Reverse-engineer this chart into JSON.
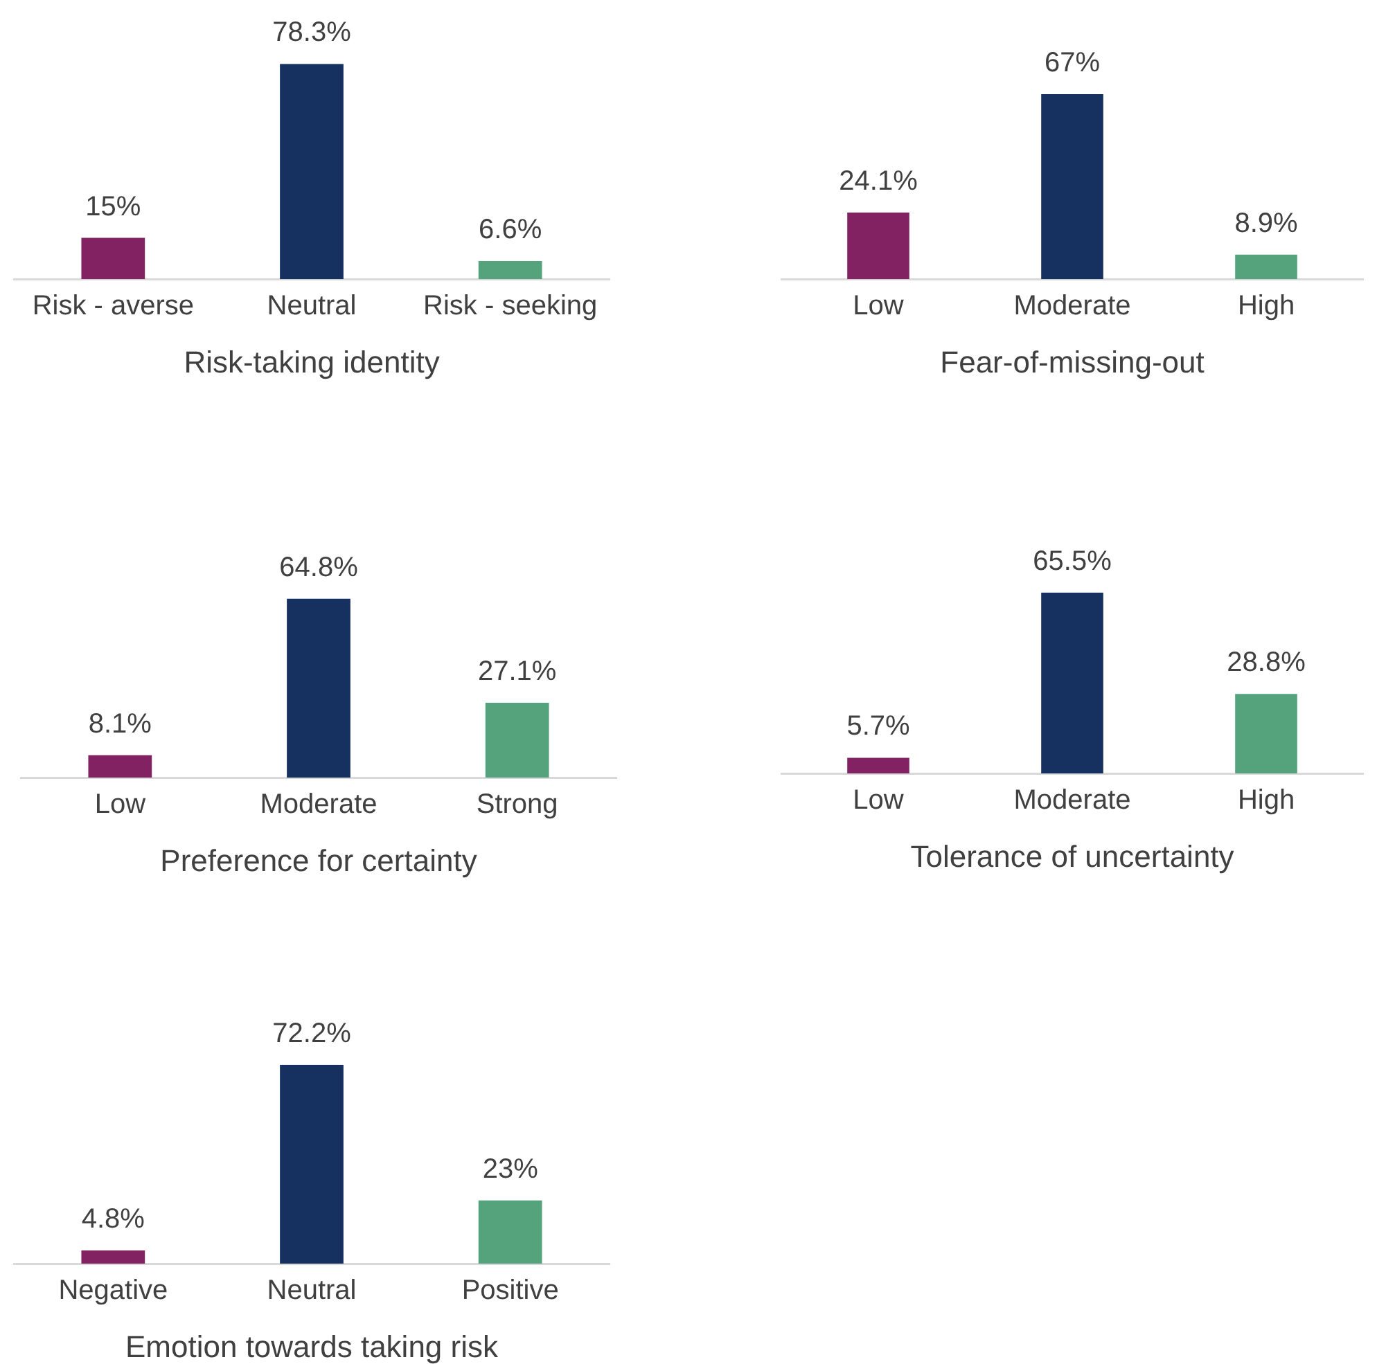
{
  "chart_data": [
    {
      "type": "bar",
      "xlabel": "Risk-taking identity",
      "categories": [
        "Risk - averse",
        "Neutral",
        "Risk - seeking"
      ],
      "values": [
        15,
        78.3,
        6.6
      ],
      "colors": [
        "#832262",
        "#16305f",
        "#54a37c"
      ],
      "value_labels": [
        "15%",
        "78.3%",
        "6.6%"
      ],
      "tick_labels": "x",
      "grid": false,
      "legend": false
    },
    {
      "type": "bar",
      "xlabel": "Fear-of-missing-out",
      "categories": [
        "Low",
        "Moderate",
        "High"
      ],
      "values": [
        24.1,
        67,
        8.9
      ],
      "colors": [
        "#832262",
        "#16305f",
        "#54a37c"
      ],
      "value_labels": [
        "24.1%",
        "67%",
        "8.9%"
      ],
      "tick_labels": "x",
      "grid": false,
      "legend": false
    },
    {
      "type": "bar",
      "xlabel": "Preference for certainty",
      "categories": [
        "Low",
        "Moderate",
        "Strong"
      ],
      "values": [
        8.1,
        64.8,
        27.1
      ],
      "colors": [
        "#832262",
        "#16305f",
        "#54a37c"
      ],
      "value_labels": [
        "8.1%",
        "64.8%",
        "27.1%"
      ],
      "tick_labels": "x",
      "grid": false,
      "legend": false
    },
    {
      "type": "bar",
      "xlabel": "Tolerance of uncertainty",
      "categories": [
        "Low",
        "Moderate",
        "High"
      ],
      "values": [
        5.7,
        65.5,
        28.8
      ],
      "colors": [
        "#832262",
        "#16305f",
        "#54a37c"
      ],
      "value_labels": [
        "5.7%",
        "65.5%",
        "28.8%"
      ],
      "tick_labels": "x",
      "grid": false,
      "legend": false
    },
    {
      "type": "bar",
      "xlabel": "Emotion towards taking risk",
      "categories": [
        "Negative",
        "Neutral",
        "Positive"
      ],
      "values": [
        4.8,
        72.2,
        23
      ],
      "colors": [
        "#832262",
        "#16305f",
        "#54a37c"
      ],
      "value_labels": [
        "4.8%",
        "72.2%",
        "23%"
      ],
      "tick_labels": "x",
      "grid": false,
      "legend": false
    }
  ]
}
